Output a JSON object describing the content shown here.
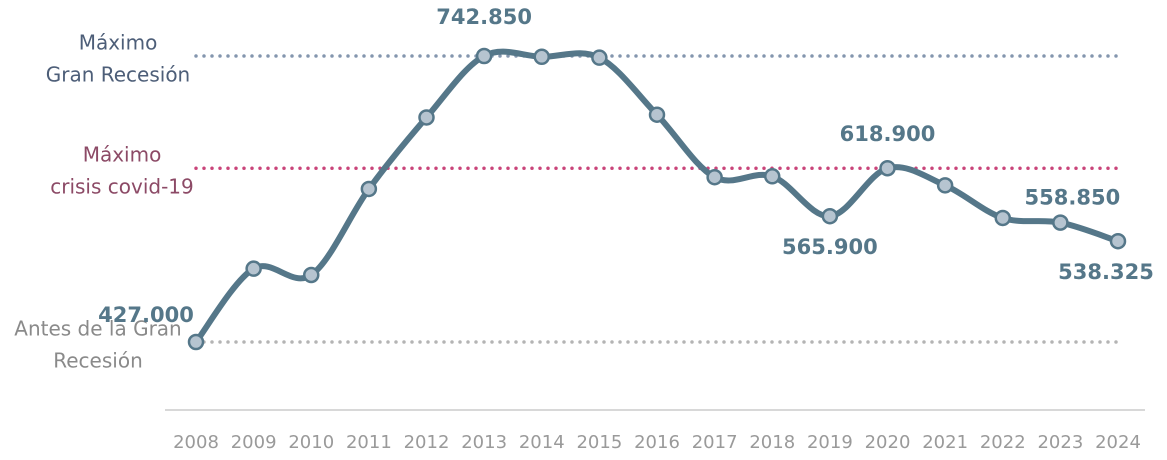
{
  "chart_data": {
    "type": "line",
    "categories": [
      "2008",
      "2009",
      "2010",
      "2011",
      "2012",
      "2013",
      "2014",
      "2015",
      "2016",
      "2017",
      "2018",
      "2019",
      "2020",
      "2021",
      "2022",
      "2023",
      "2024"
    ],
    "values": [
      427000,
      508000,
      501000,
      596000,
      675000,
      742850,
      742000,
      741000,
      678000,
      609000,
      610000,
      565900,
      618900,
      600000,
      564000,
      558850,
      538325
    ],
    "value_labels": [
      "427.000",
      null,
      null,
      null,
      null,
      "742.850",
      null,
      null,
      null,
      null,
      null,
      "565.900",
      "618.900",
      null,
      null,
      "558.850",
      "538.325"
    ],
    "color": "#557789",
    "marker_color": "#b6c4d0",
    "reference_lines": [
      {
        "label": [
          "Máximo",
          "Gran Recesión"
        ],
        "value": 742850,
        "color": "#8496ae",
        "text_color": "#4d5e78"
      },
      {
        "label": [
          "Máximo",
          "crisis covid-19"
        ],
        "value": 618900,
        "color": "#c9457a",
        "text_color": "#8c4a66"
      },
      {
        "label": [
          "Antes de la Gran",
          "Recesión"
        ],
        "value": 427000,
        "color": "#b4b4b4",
        "text_color": "#8a8a8a"
      }
    ]
  }
}
